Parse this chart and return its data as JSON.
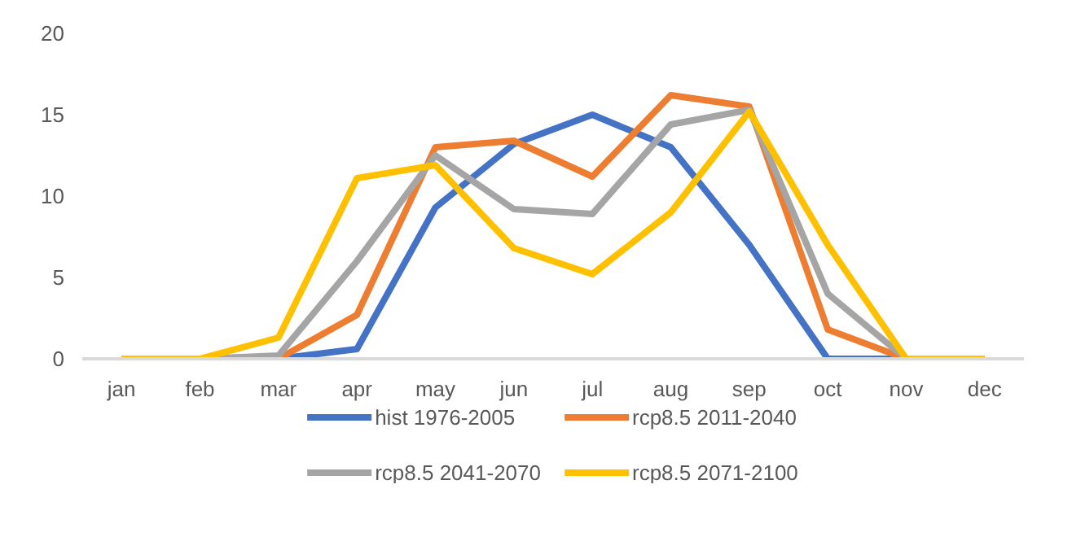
{
  "chart_data": {
    "type": "line",
    "categories": [
      "jan",
      "feb",
      "mar",
      "apr",
      "may",
      "jun",
      "jul",
      "aug",
      "sep",
      "oct",
      "nov",
      "dec"
    ],
    "series": [
      {
        "name": "hist 1976-2005",
        "color": "#4472c4",
        "values": [
          0,
          0,
          0,
          0.6,
          9.3,
          13.2,
          15,
          13,
          7,
          0,
          0,
          0
        ]
      },
      {
        "name": "rcp8.5 2011-2040",
        "color": "#ed7d31",
        "values": [
          0,
          0,
          0,
          2.7,
          13,
          13.4,
          11.2,
          16.2,
          15.5,
          1.8,
          0,
          0
        ]
      },
      {
        "name": "rcp8.5 2041-2070",
        "color": "#a5a5a5",
        "values": [
          0,
          0,
          0.2,
          6,
          12.5,
          9.2,
          8.9,
          14.4,
          15.3,
          4,
          0,
          0
        ]
      },
      {
        "name": "rcp8.5 2071-2100",
        "color": "#ffc000",
        "values": [
          0,
          0,
          1.3,
          11.1,
          11.9,
          6.8,
          5.2,
          9,
          15.2,
          7,
          0,
          0
        ]
      }
    ],
    "ylim": [
      0,
      20
    ],
    "yticks": [
      0,
      5,
      10,
      15,
      20
    ],
    "grid": false,
    "legend": "bottom",
    "marker": "none",
    "line_style": "solid"
  }
}
